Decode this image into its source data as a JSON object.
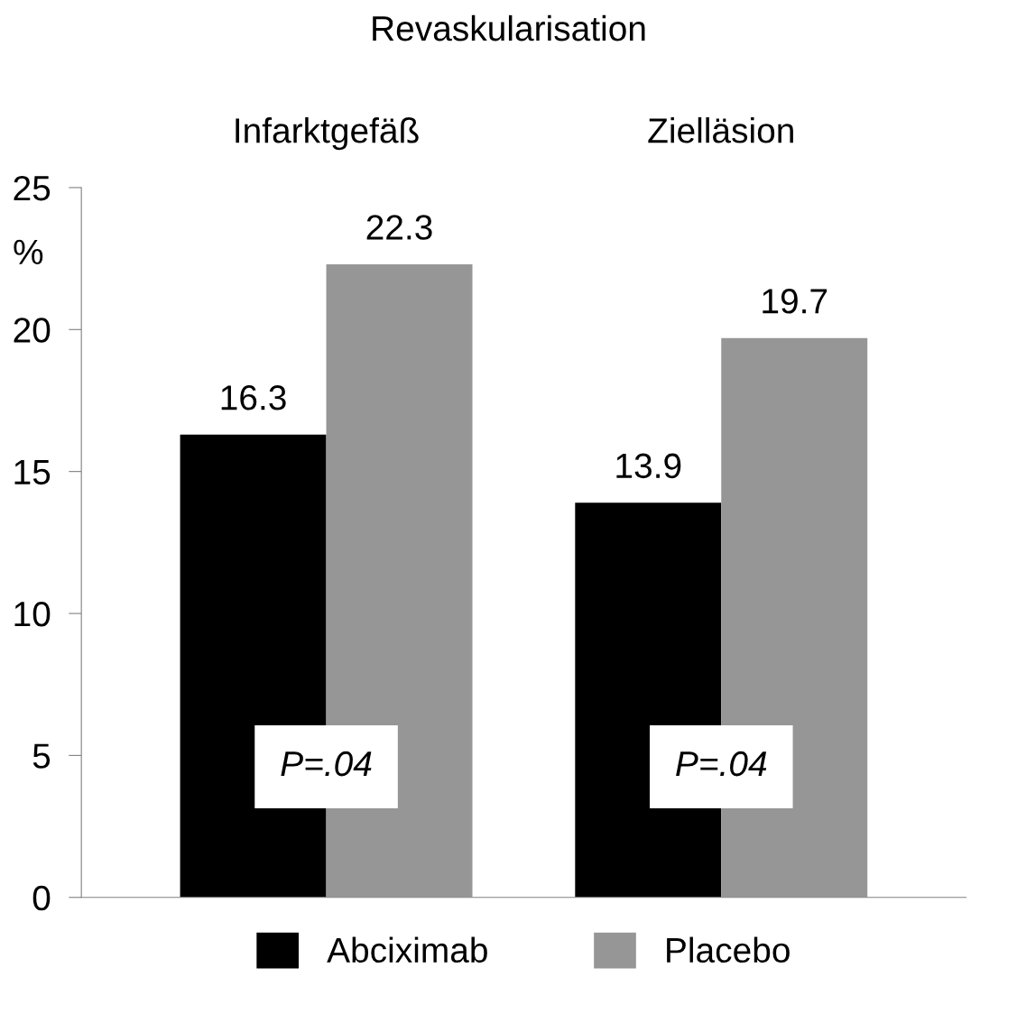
{
  "chart_data": {
    "type": "bar",
    "title": "Revaskularisation",
    "ylabel": "%",
    "categories": [
      "Infarktgefäß",
      "Zielläsion"
    ],
    "series": [
      {
        "name": "Abciximab",
        "color": "#000000",
        "values": [
          16.3,
          13.9
        ]
      },
      {
        "name": "Placebo",
        "color": "#969696",
        "values": [
          22.3,
          19.7
        ]
      }
    ],
    "ylim": [
      0,
      25
    ],
    "yticks": [
      0,
      5,
      10,
      15,
      20,
      25
    ],
    "grid": false,
    "data_labels": true,
    "legend": "bottom",
    "annotations": [
      {
        "text": "P=.04",
        "x": "Infarktgefäß",
        "y": 4.6
      },
      {
        "text": "P=.04",
        "x": "Zielläsion",
        "y": 4.6
      }
    ]
  }
}
